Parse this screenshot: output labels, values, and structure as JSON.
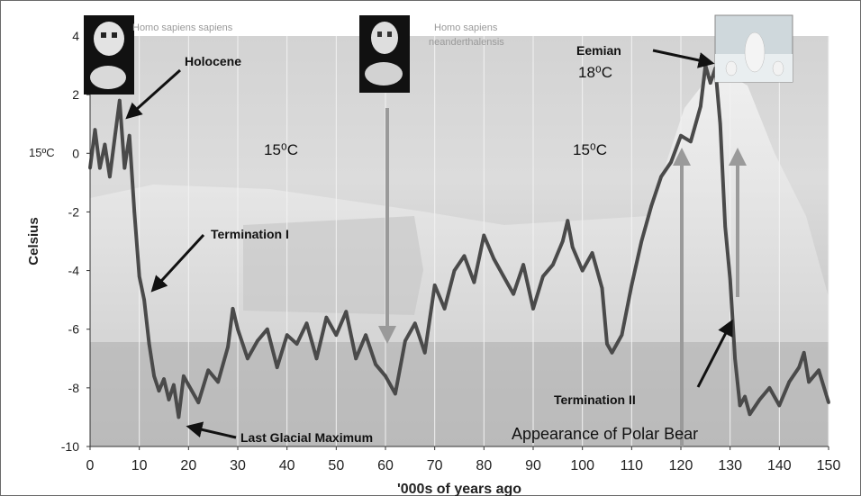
{
  "chart_data": {
    "type": "line",
    "xlabel": "'000s of years ago",
    "ylabel": "Celsius",
    "xlim": [
      0,
      150
    ],
    "ylim": [
      -10,
      4
    ],
    "xticks": [
      "0",
      "10",
      "20",
      "30",
      "40",
      "50",
      "60",
      "70",
      "80",
      "90",
      "100",
      "110",
      "120",
      "130",
      "140",
      "150"
    ],
    "yticks": [
      "4",
      "2",
      "0",
      "-2",
      "-4",
      "-6",
      "-8",
      "-10"
    ],
    "grid": "vertical",
    "series": [
      {
        "color": "#4a4a4a",
        "x": [
          0,
          1,
          2,
          3,
          4,
          5,
          6,
          7,
          8,
          9,
          10,
          11,
          12,
          13,
          14,
          15,
          16,
          17,
          18,
          19,
          20,
          22,
          24,
          26,
          28,
          29,
          30,
          32,
          34,
          36,
          38,
          40,
          42,
          44,
          46,
          48,
          50,
          52,
          54,
          56,
          58,
          60,
          62,
          64,
          66,
          68,
          70,
          72,
          74,
          76,
          78,
          80,
          82,
          84,
          86,
          88,
          90,
          92,
          94,
          96,
          97,
          98,
          100,
          102,
          104,
          105,
          106,
          108,
          110,
          112,
          114,
          116,
          118,
          120,
          122,
          124,
          125,
          126,
          127,
          128,
          129,
          130,
          131,
          132,
          133,
          134,
          136,
          138,
          140,
          142,
          144,
          145,
          146,
          148,
          150
        ],
        "y": [
          -0.5,
          0.8,
          -0.5,
          0.3,
          -0.8,
          0.5,
          1.8,
          -0.5,
          0.6,
          -2.0,
          -4.2,
          -5.0,
          -6.5,
          -7.6,
          -8.1,
          -7.7,
          -8.4,
          -7.9,
          -9.0,
          -7.6,
          -7.9,
          -8.5,
          -7.4,
          -7.8,
          -6.6,
          -5.3,
          -6.0,
          -7.0,
          -6.4,
          -6.0,
          -7.3,
          -6.2,
          -6.5,
          -5.8,
          -7.0,
          -5.6,
          -6.2,
          -5.4,
          -7.0,
          -6.2,
          -7.2,
          -7.6,
          -8.2,
          -6.4,
          -5.8,
          -6.8,
          -4.5,
          -5.3,
          -4.0,
          -3.5,
          -4.4,
          -2.8,
          -3.6,
          -4.2,
          -4.8,
          -3.8,
          -5.3,
          -4.2,
          -3.8,
          -3.0,
          -2.3,
          -3.2,
          -4.0,
          -3.4,
          -4.6,
          -6.5,
          -6.8,
          -6.2,
          -4.5,
          -3.0,
          -1.8,
          -0.8,
          -0.3,
          0.6,
          0.4,
          1.6,
          3.0,
          2.4,
          2.9,
          1.0,
          -2.5,
          -4.3,
          -7.0,
          -8.6,
          -8.3,
          -8.9,
          -8.4,
          -8.0,
          -8.6,
          -7.8,
          -7.3,
          -6.8,
          -7.8,
          -7.4,
          -8.5
        ]
      }
    ],
    "annotations": {
      "holocene": "Holocene",
      "termination_1": "Termination I",
      "lgm": "Last Glacial Maximum",
      "eemian": "Eemian",
      "eemian_temp": "18⁰C",
      "termination_2": "Termination II",
      "polar_bear": "Appearance of Polar Bear",
      "temp_left": "15⁰C",
      "temp_right": "15⁰C",
      "temp_axis": "15ºC",
      "homo_sapiens": "Homo sapiens  sapiens",
      "neanderthal_1": "Homo sapiens",
      "neanderthal_2": "neanderthalensis"
    }
  }
}
